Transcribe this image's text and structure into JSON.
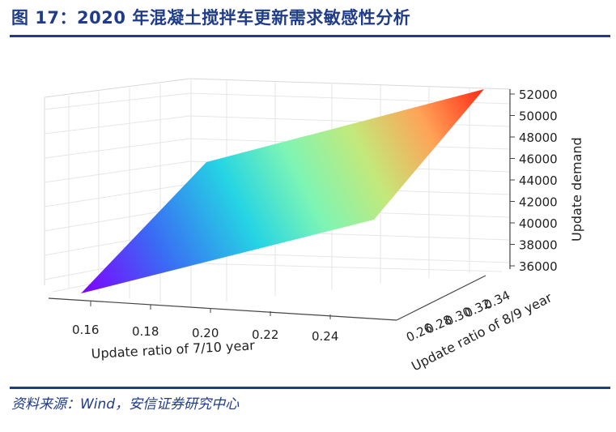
{
  "header": {
    "title": "图 17：2020 年混凝土搅拌车更新需求敏感性分析"
  },
  "footer": {
    "source": "资料来源：Wind，安信证券研究中心"
  },
  "chart_data": {
    "type": "surface3d",
    "title": "",
    "xlabel": "Update ratio of 7/10 year",
    "ylabel": "Update ratio of 8/9 year",
    "zlabel": "Update demand",
    "x_ticks": [
      "0.16",
      "0.18",
      "0.20",
      "0.22",
      "0.24"
    ],
    "y_ticks": [
      "0.26",
      "0.28",
      "0.30",
      "0.32",
      "0.34"
    ],
    "z_ticks": [
      "36000",
      "38000",
      "40000",
      "42000",
      "44000",
      "46000",
      "48000",
      "50000",
      "52000"
    ],
    "xlim": [
      0.15,
      0.25
    ],
    "ylim": [
      0.25,
      0.35
    ],
    "zlim": [
      35000,
      52000
    ],
    "colormap": "rainbow",
    "surface_corners": [
      {
        "x": 0.15,
        "y": 0.25,
        "z": 35000
      },
      {
        "x": 0.25,
        "y": 0.25,
        "z": 40000
      },
      {
        "x": 0.15,
        "y": 0.35,
        "z": 46000
      },
      {
        "x": 0.25,
        "y": 0.35,
        "z": 52000
      }
    ],
    "grid": true
  }
}
